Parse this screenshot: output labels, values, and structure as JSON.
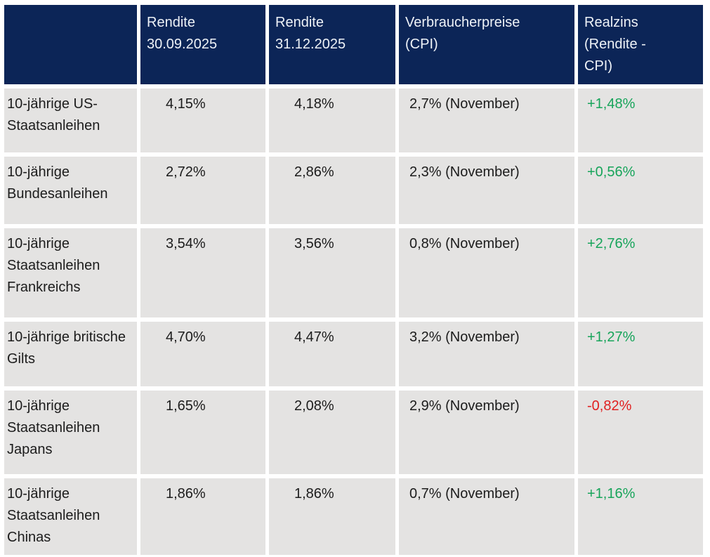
{
  "colors": {
    "header_bg": "#0c2557",
    "header_text": "#eef2f7",
    "row_bg": "#e4e3e2",
    "body_text": "#1c1c1c",
    "positive": "#17a45a",
    "negative": "#e02020"
  },
  "chart_data": {
    "type": "table",
    "columns": [
      "",
      "Rendite\n30.09.2025",
      "Rendite\n31.12.2025",
      "Verbraucherpreise\n(CPI)",
      "Realzins\n(Rendite -\nCPI)"
    ],
    "rows": [
      [
        "10-jährige US-Staatsanleihen",
        "4,15%",
        "4,18%",
        "2,7% (November)",
        "+1,48%"
      ],
      [
        "10-jährige Bundesanleihen",
        "2,72%",
        "2,86%",
        "2,3% (November)",
        "+0,56%"
      ],
      [
        "10-jährige Staatsanleihen Frankreichs",
        "3,54%",
        "3,56%",
        "0,8% (November)",
        "+2,76%"
      ],
      [
        "10-jährige britische Gilts",
        "4,70%",
        "4,47%",
        "3,2% (November)",
        "+1,27%"
      ],
      [
        "10-jährige Staatsanleihen Japans",
        "1,65%",
        "2,08%",
        "2,9% (November)",
        "-0,82%"
      ],
      [
        "10-jährige Staatsanleihen Chinas",
        "1,86%",
        "1,86%",
        "0,7% (November)",
        "+1,16%"
      ]
    ]
  }
}
